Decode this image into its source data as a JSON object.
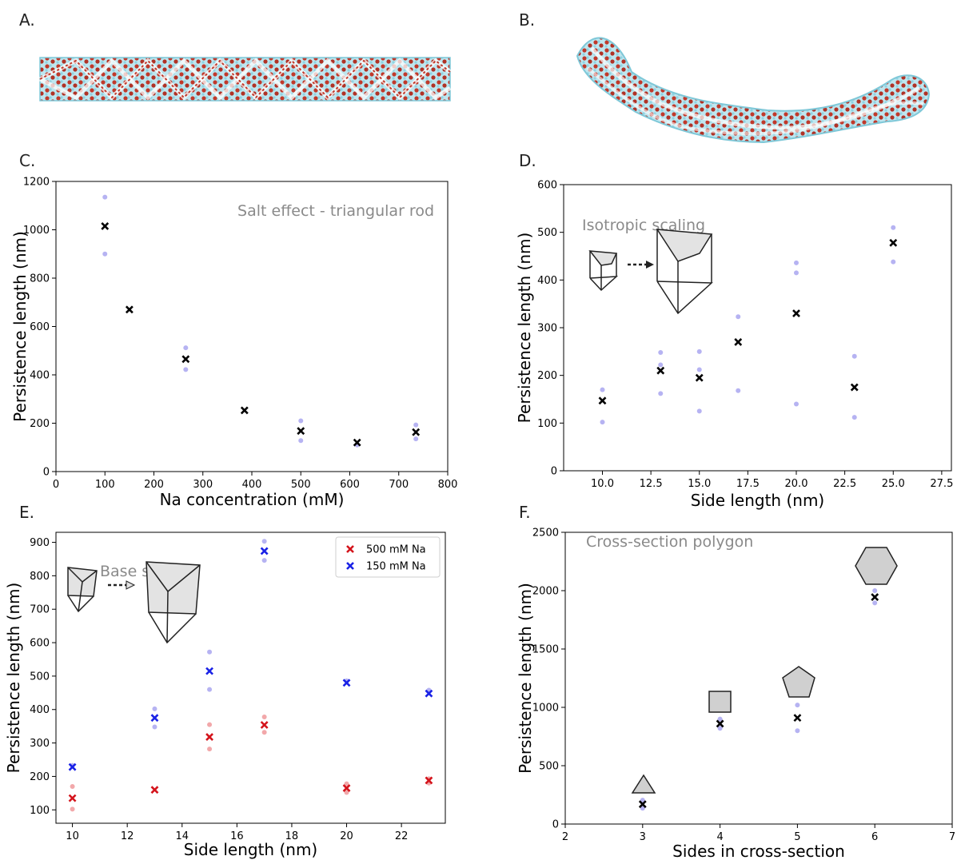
{
  "panel_labels": [
    "A.",
    "B.",
    "C.",
    "D.",
    "E.",
    "F."
  ],
  "chart_data": [
    {
      "id": "C",
      "type": "scatter",
      "annotation": "Salt effect - triangular rod",
      "xlabel": "Na concentration (mM)",
      "ylabel": "Persistence length (nm)",
      "xlim": [
        0,
        800
      ],
      "ylim": [
        0,
        1200
      ],
      "xticks": [
        0,
        100,
        200,
        300,
        400,
        500,
        600,
        700,
        800
      ],
      "yticks": [
        0,
        200,
        400,
        600,
        800,
        1000,
        1200
      ],
      "tick_labels_x": [
        "0",
        "100",
        "200",
        "300",
        "400",
        "500",
        "600",
        "700",
        "800"
      ],
      "tick_labels_y": [
        "0",
        "200",
        "400",
        "600",
        "800",
        "1000",
        "1200"
      ],
      "series": [
        {
          "marker": "x",
          "color": "#000000",
          "x": [
            100,
            150,
            265,
            385,
            500,
            615,
            735
          ],
          "y": [
            1015,
            670,
            465,
            253,
            168,
            120,
            163
          ]
        },
        {
          "marker": "dot",
          "color": "#b6b3f2",
          "x": [
            100,
            100,
            265,
            265,
            500,
            500,
            615,
            735,
            735
          ],
          "y": [
            1135,
            900,
            512,
            422,
            210,
            128,
            110,
            193,
            135
          ]
        }
      ]
    },
    {
      "id": "D",
      "type": "scatter",
      "annotation": "Isotropic scaling",
      "xlabel": "Side length (nm)",
      "ylabel": "Persistence length (nm)",
      "xlim": [
        8,
        28
      ],
      "ylim": [
        0,
        600
      ],
      "xticks": [
        10,
        12.5,
        15,
        17.5,
        20,
        22.5,
        25,
        27.5
      ],
      "yticks": [
        0,
        100,
        200,
        300,
        400,
        500,
        600
      ],
      "tick_labels_x": [
        "10.0",
        "12.5",
        "15.0",
        "17.5",
        "20.0",
        "22.5",
        "25.0",
        "27.5"
      ],
      "tick_labels_y": [
        "0",
        "100",
        "200",
        "300",
        "400",
        "500",
        "600"
      ],
      "series": [
        {
          "marker": "x",
          "color": "#000000",
          "x": [
            10,
            13,
            15,
            17,
            20,
            23,
            25
          ],
          "y": [
            147,
            210,
            195,
            270,
            330,
            175,
            478
          ]
        },
        {
          "marker": "dot",
          "color": "#b6b3f2",
          "x": [
            10,
            10,
            13,
            13,
            13,
            15,
            15,
            15,
            17,
            17,
            20,
            20,
            20,
            23,
            23,
            25,
            25
          ],
          "y": [
            170,
            102,
            248,
            222,
            162,
            250,
            212,
            125,
            323,
            168,
            436,
            415,
            140,
            240,
            112,
            510,
            438
          ]
        }
      ]
    },
    {
      "id": "E",
      "type": "scatter",
      "annotation": "Base scaling",
      "xlabel": "Side length (nm)",
      "ylabel": "Persistence length (nm)",
      "xlim": [
        9.4,
        23.6
      ],
      "ylim": [
        60,
        930
      ],
      "xticks": [
        10,
        12,
        14,
        16,
        18,
        20,
        22
      ],
      "yticks": [
        100,
        200,
        300,
        400,
        500,
        600,
        700,
        800,
        900
      ],
      "tick_labels_x": [
        "10",
        "12",
        "14",
        "16",
        "18",
        "20",
        "22"
      ],
      "tick_labels_y": [
        "100",
        "200",
        "300",
        "400",
        "500",
        "600",
        "700",
        "800",
        "900"
      ],
      "legend": {
        "placement": "top-right",
        "entries": [
          "500 mM Na",
          "150 mM Na"
        ]
      },
      "series": [
        {
          "name": "500 mM Na",
          "marker": "x",
          "color": "#d4141c",
          "x": [
            10,
            13,
            15,
            17,
            20,
            23
          ],
          "y": [
            135,
            160,
            318,
            354,
            165,
            188
          ]
        },
        {
          "name": "150 mM Na",
          "marker": "x",
          "color": "#1a22e6",
          "x": [
            10,
            13,
            15,
            17,
            20,
            23
          ],
          "y": [
            228,
            375,
            515,
            874,
            480,
            448
          ]
        },
        {
          "marker": "dot",
          "color": "#f2a8aa",
          "x": [
            10,
            10,
            15,
            15,
            17,
            17,
            20,
            20,
            23,
            23
          ],
          "y": [
            170,
            102,
            355,
            282,
            378,
            332,
            178,
            152,
            193,
            180
          ]
        },
        {
          "marker": "dot",
          "color": "#b6b3f2",
          "x": [
            10,
            13,
            13,
            15,
            15,
            17,
            17,
            20,
            23
          ],
          "y": [
            233,
            402,
            348,
            572,
            460,
            903,
            846,
            486,
            458
          ]
        }
      ]
    },
    {
      "id": "F",
      "type": "scatter",
      "annotation": "Cross-section polygon",
      "xlabel": "Sides in cross-section",
      "ylabel": "Persistence length (nm)",
      "xlim": [
        2,
        7
      ],
      "ylim": [
        0,
        2500
      ],
      "xticks": [
        2,
        3,
        4,
        5,
        6,
        7
      ],
      "yticks": [
        0,
        500,
        1000,
        1500,
        2000,
        2500
      ],
      "tick_labels_x": [
        "2",
        "3",
        "4",
        "5",
        "6",
        "7"
      ],
      "tick_labels_y": [
        "0",
        "500",
        "1000",
        "1500",
        "2000",
        "2500"
      ],
      "series": [
        {
          "marker": "x",
          "color": "#000000",
          "x": [
            3,
            4,
            5,
            6
          ],
          "y": [
            170,
            860,
            910,
            1945
          ]
        },
        {
          "marker": "dot",
          "color": "#b6b3f2",
          "x": [
            3,
            3,
            4,
            4,
            5,
            5,
            6,
            6
          ],
          "y": [
            205,
            135,
            900,
            820,
            1020,
            800,
            2000,
            1895
          ]
        }
      ]
    }
  ]
}
